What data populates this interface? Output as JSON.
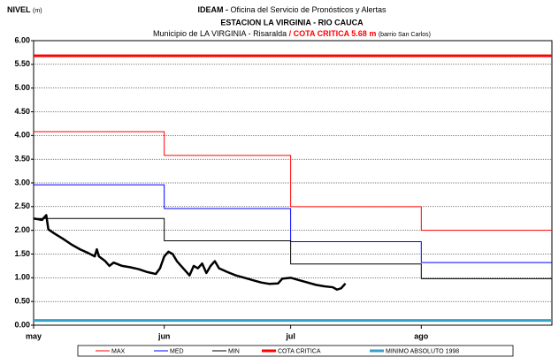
{
  "chart_data": {
    "type": "line",
    "title": {
      "bold": "IDEAM -",
      "rest": "Oficina del Servicio de Pronósticos y Alertas"
    },
    "subtitle": "ESTACION LA VIRGINIA - RIO CAUCA",
    "note": {
      "text": "Municipio de LA VIRGINIA - Risaralda",
      "sep": "/",
      "critical": "COTA CRITICA 5.68 m",
      "place": "(barrio San Carlos)"
    },
    "ylabel": {
      "name": "NIVEL",
      "unit": "(m)"
    },
    "xlim": [
      0,
      123
    ],
    "xticks": [
      {
        "value": 0,
        "label": "may"
      },
      {
        "value": 31,
        "label": "jun"
      },
      {
        "value": 61,
        "label": "jul"
      },
      {
        "value": 92,
        "label": "ago"
      }
    ],
    "ylim": [
      0,
      6
    ],
    "yticks": [
      {
        "value": 0,
        "label": "0.00"
      },
      {
        "value": 0.5,
        "label": "0.50"
      },
      {
        "value": 1,
        "label": "1.00"
      },
      {
        "value": 1.5,
        "label": "1.50"
      },
      {
        "value": 2,
        "label": "2.00"
      },
      {
        "value": 2.5,
        "label": "2.50"
      },
      {
        "value": 3,
        "label": "3.00"
      },
      {
        "value": 3.5,
        "label": "3.50"
      },
      {
        "value": 4,
        "label": "4.00"
      },
      {
        "value": 4.5,
        "label": "4.50"
      },
      {
        "value": 5,
        "label": "5.00"
      },
      {
        "value": 5.5,
        "label": "5.50"
      },
      {
        "value": 6,
        "label": "6.00"
      }
    ],
    "grid": true,
    "series": [
      {
        "name": "MAX",
        "color": "#ff0000",
        "width": 1,
        "x": [
          0,
          31,
          31,
          61,
          61,
          92,
          92,
          123
        ],
        "values": [
          4.08,
          4.08,
          3.58,
          3.58,
          2.5,
          2.5,
          2.0,
          2.0
        ]
      },
      {
        "name": "MED",
        "color": "#0000ff",
        "width": 1,
        "x": [
          0,
          31,
          31,
          61,
          61,
          92,
          92,
          123
        ],
        "values": [
          2.96,
          2.96,
          2.46,
          2.46,
          1.76,
          1.76,
          1.32,
          1.32
        ]
      },
      {
        "name": "MIN",
        "color": "#000000",
        "width": 1,
        "x": [
          0,
          31,
          31,
          61,
          61,
          92,
          92,
          123
        ],
        "values": [
          2.25,
          2.25,
          1.78,
          1.78,
          1.29,
          1.29,
          0.98,
          0.98
        ]
      },
      {
        "name": "COTA CRITICA",
        "color": "#ff0000",
        "width": 3,
        "x": [
          0,
          123
        ],
        "values": [
          5.68,
          5.68
        ]
      },
      {
        "name": "MINIMO ABSOLUTO 1998",
        "color": "#33a1c9",
        "width": 3,
        "x": [
          0,
          123
        ],
        "values": [
          0.1,
          0.1
        ]
      },
      {
        "color": "#000000",
        "width": 2.5,
        "x": [
          0,
          2,
          3,
          3.5,
          5,
          7,
          9,
          11,
          13,
          14.5,
          15,
          15.5,
          17,
          18,
          19,
          21,
          23,
          25,
          27,
          29,
          30,
          31,
          32,
          33,
          34,
          35,
          36,
          37,
          38,
          39,
          40,
          41,
          42,
          43,
          44,
          46,
          48,
          50,
          52,
          54,
          56,
          58,
          59,
          61,
          63,
          65,
          67,
          69,
          71,
          72,
          73,
          74
        ],
        "values": [
          2.25,
          2.22,
          2.32,
          2.02,
          1.93,
          1.82,
          1.7,
          1.6,
          1.52,
          1.45,
          1.6,
          1.45,
          1.35,
          1.25,
          1.32,
          1.25,
          1.22,
          1.18,
          1.12,
          1.08,
          1.2,
          1.45,
          1.55,
          1.5,
          1.35,
          1.25,
          1.15,
          1.05,
          1.25,
          1.2,
          1.3,
          1.1,
          1.25,
          1.35,
          1.2,
          1.12,
          1.05,
          1.0,
          0.95,
          0.9,
          0.87,
          0.88,
          0.98,
          1.0,
          0.95,
          0.9,
          0.85,
          0.82,
          0.8,
          0.75,
          0.78,
          0.88
        ]
      }
    ]
  }
}
